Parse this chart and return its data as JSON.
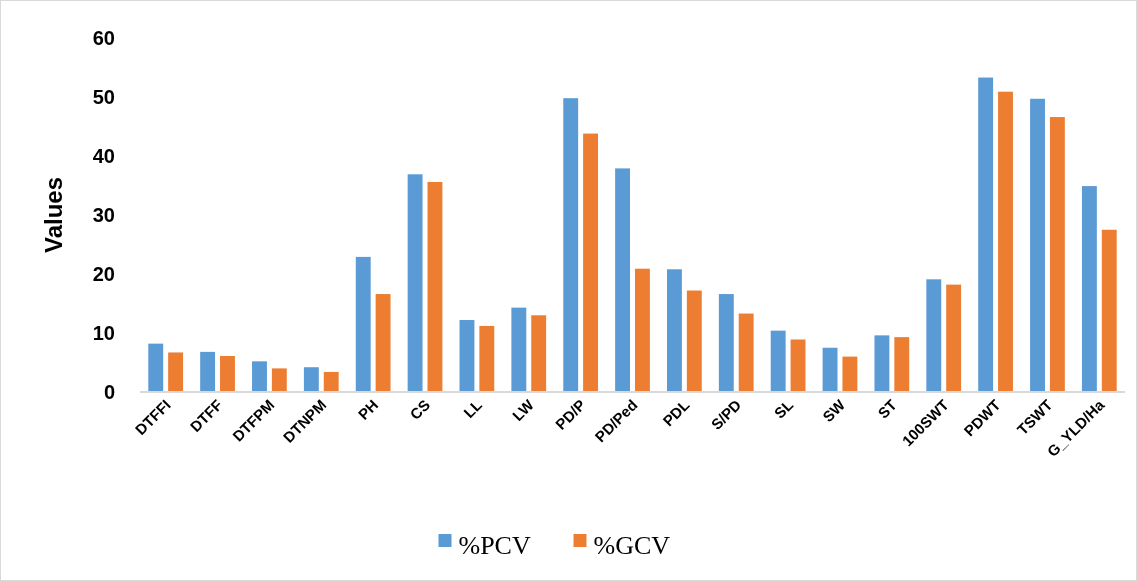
{
  "chart_data": {
    "type": "bar",
    "ylabel": "Values",
    "categories": [
      "DTFFI",
      "DTFF",
      "DTFPM",
      "DTNPM",
      "PH",
      "CS",
      "LL",
      "LW",
      "PD/P",
      "PD/Ped",
      "PDL",
      "S/PD",
      "SL",
      "SW",
      "ST",
      "100SWT",
      "PDWT",
      "TSWT",
      "G_YLD/Ha"
    ],
    "series": [
      {
        "name": "%PCV",
        "color": "#5b9bd5",
        "values": [
          8.2,
          6.8,
          5.2,
          4.2,
          22.9,
          36.9,
          12.2,
          14.3,
          49.8,
          37.9,
          20.8,
          16.6,
          10.4,
          7.5,
          9.6,
          19.1,
          53.3,
          49.7,
          34.9
        ]
      },
      {
        "name": "%GCV",
        "color": "#ed7d31",
        "values": [
          6.7,
          6.1,
          4.0,
          3.4,
          16.6,
          35.6,
          11.2,
          13.0,
          43.8,
          20.9,
          17.2,
          13.3,
          8.9,
          6.0,
          9.3,
          18.2,
          50.9,
          46.6,
          27.5
        ]
      }
    ],
    "ylim": [
      0,
      60
    ],
    "yticks": [
      0,
      10,
      20,
      30,
      40,
      50,
      60
    ],
    "grid": false,
    "legend": "bottom"
  }
}
